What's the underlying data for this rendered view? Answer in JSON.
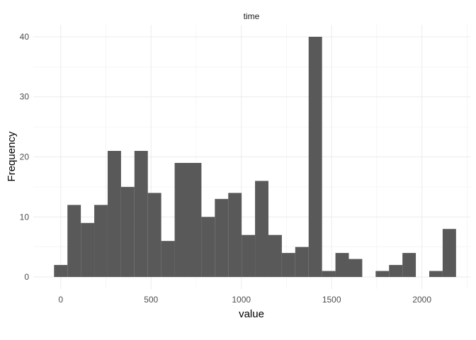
{
  "chart_data": {
    "type": "bar",
    "title": "time",
    "xlabel": "value",
    "ylabel": "Frequency",
    "bin_width": 74.2,
    "bins": [
      {
        "start": -37.1,
        "count": 2
      },
      {
        "start": 37.1,
        "count": 12
      },
      {
        "start": 111.3,
        "count": 9
      },
      {
        "start": 185.5,
        "count": 12
      },
      {
        "start": 259.7,
        "count": 21
      },
      {
        "start": 333.9,
        "count": 15
      },
      {
        "start": 408.1,
        "count": 21
      },
      {
        "start": 482.3,
        "count": 14
      },
      {
        "start": 556.5,
        "count": 6
      },
      {
        "start": 630.7,
        "count": 19
      },
      {
        "start": 704.9,
        "count": 19
      },
      {
        "start": 779.1,
        "count": 10
      },
      {
        "start": 853.3,
        "count": 13
      },
      {
        "start": 927.5,
        "count": 14
      },
      {
        "start": 1001.7,
        "count": 7
      },
      {
        "start": 1075.9,
        "count": 16
      },
      {
        "start": 1150.1,
        "count": 7
      },
      {
        "start": 1224.3,
        "count": 4
      },
      {
        "start": 1298.5,
        "count": 5
      },
      {
        "start": 1372.7,
        "count": 40
      },
      {
        "start": 1446.9,
        "count": 1
      },
      {
        "start": 1521.1,
        "count": 4
      },
      {
        "start": 1595.3,
        "count": 3
      },
      {
        "start": 1669.5,
        "count": 0
      },
      {
        "start": 1743.7,
        "count": 1
      },
      {
        "start": 1817.9,
        "count": 2
      },
      {
        "start": 1892.1,
        "count": 4
      },
      {
        "start": 1966.3,
        "count": 0
      },
      {
        "start": 2040.5,
        "count": 1
      },
      {
        "start": 2114.7,
        "count": 8
      }
    ],
    "xlim": [
      -152,
      2268
    ],
    "ylim": [
      -2,
      42
    ],
    "xticks": [
      0,
      500,
      1000,
      1500,
      2000
    ],
    "yticks": [
      0,
      10,
      20,
      30,
      40
    ],
    "grid": true,
    "bar_color": "#595959",
    "grid_color": "#ebebeb"
  }
}
